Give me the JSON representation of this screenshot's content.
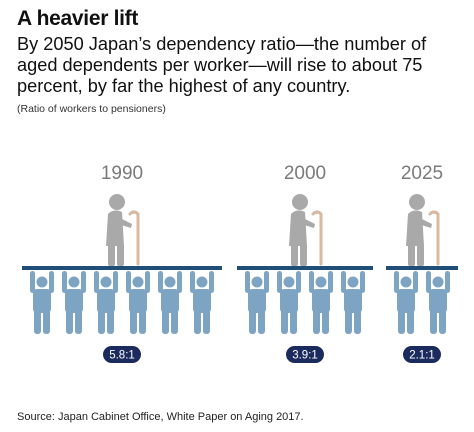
{
  "header": {
    "title": "A heavier lift",
    "subtitle": "By 2050 Japan’s dependency ratio—the number of aged dependents per worker—will rise to about 75 percent, by far the highest of any country.",
    "note": "(Ratio of workers to pensioners)"
  },
  "source": "Source: Japan Cabinet Office, White Paper on Aging 2017.",
  "colors": {
    "worker": "#7ea4c4",
    "pensioner": "#a9a9a9",
    "cane": "#d9b9a0",
    "bar": "#1f4e79",
    "badge": "#1c2b5e",
    "year_text": "#7a7a7a"
  },
  "icons": {
    "worker": "person-arms-raised-icon",
    "pensioner": "elderly-person-with-cane-icon"
  },
  "chart_data": {
    "type": "pictogram",
    "categories": [
      "1990",
      "2000",
      "2025"
    ],
    "values": [
      5.8,
      3.9,
      2.1
    ],
    "value_labels": [
      "5.8:1",
      "3.9:1",
      "2.1:1"
    ],
    "workers_drawn": [
      6,
      4,
      2
    ],
    "pensioners_drawn": [
      1,
      1,
      1
    ]
  }
}
